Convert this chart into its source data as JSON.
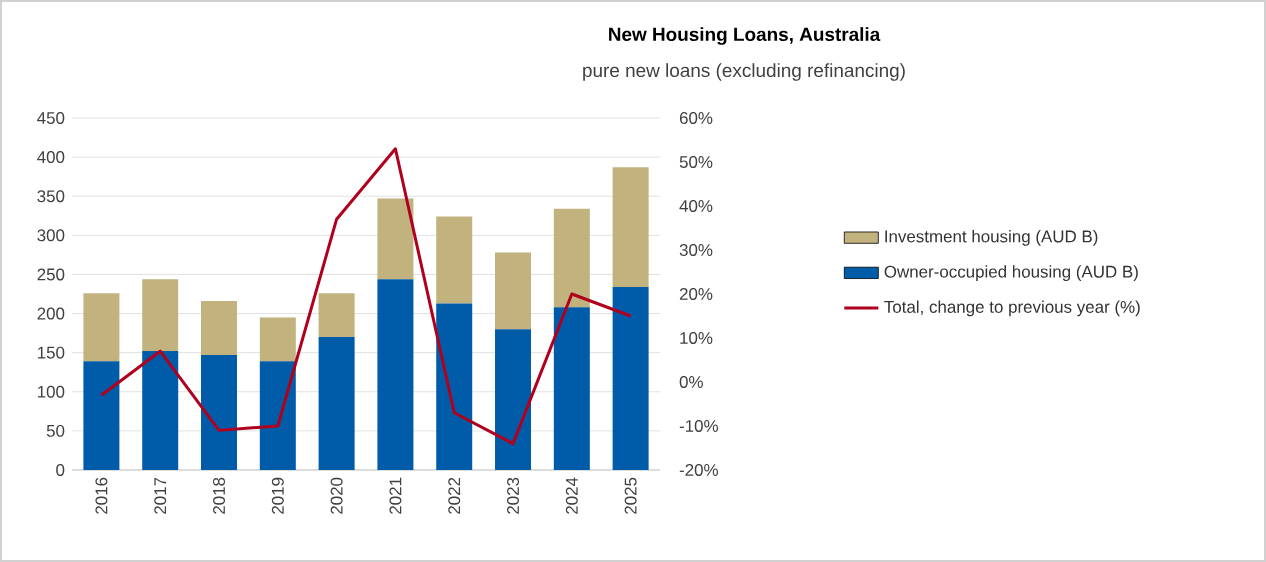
{
  "chart_data": {
    "type": "bar",
    "title": "New Housing Loans, Australia",
    "subtitle": "pure new loans (excluding refinancing)",
    "categories": [
      "2016",
      "2017",
      "2018",
      "2019",
      "2020",
      "2021",
      "2022",
      "2023",
      "2024",
      "2025"
    ],
    "stacked": true,
    "grid": "y",
    "legend": "right",
    "ylim": [
      0,
      450
    ],
    "yticks": [
      0,
      50,
      100,
      150,
      200,
      250,
      300,
      350,
      400,
      450
    ],
    "y2lim": [
      -20,
      60
    ],
    "y2ticks": [
      {
        "value": -20,
        "label": "-20%"
      },
      {
        "value": -10,
        "label": "-10%"
      },
      {
        "value": 0,
        "label": "0%"
      },
      {
        "value": 10,
        "label": "10%"
      },
      {
        "value": 20,
        "label": "20%"
      },
      {
        "value": 30,
        "label": "30%"
      },
      {
        "value": 40,
        "label": "40%"
      },
      {
        "value": 50,
        "label": "50%"
      },
      {
        "value": 60,
        "label": "60%"
      }
    ],
    "series": [
      {
        "name": "Owner-occupied housing (AUD B)",
        "color": "#005ca9",
        "values": [
          139,
          152,
          147,
          139,
          170,
          244,
          213,
          180,
          208,
          234
        ]
      },
      {
        "name": "Investment housing (AUD B)",
        "color": "#c1b27e",
        "values": [
          87,
          92,
          69,
          56,
          56,
          103,
          111,
          98,
          126,
          153
        ]
      },
      {
        "name": "Total, change to previous year (%)",
        "type": "line",
        "axis": "y2",
        "color": "#b0001e",
        "values": [
          -3,
          7,
          -11,
          -10,
          37,
          53,
          -7,
          -14,
          20,
          15
        ]
      }
    ]
  }
}
